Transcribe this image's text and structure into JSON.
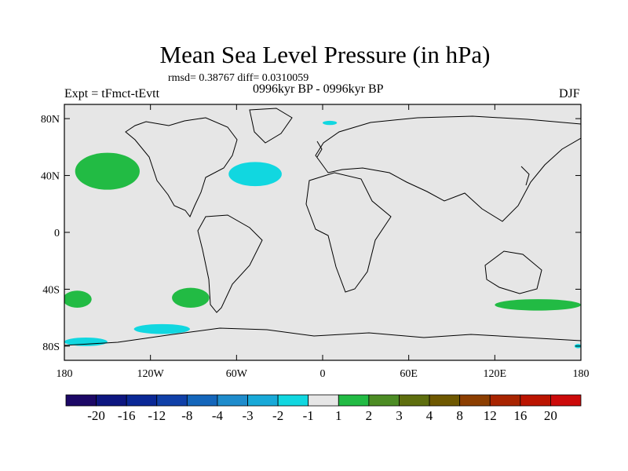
{
  "title": "Mean Sea Level Pressure (in hPa)",
  "stats": "rmsd= 0.38767 diff= 0.0310059",
  "experiment": "Expt = tFmct-tEvtt",
  "period": "0996kyr BP - 0996kyr BP",
  "season": "DJF",
  "map": {
    "background_color": "#e6e6e6",
    "lat_ticks": [
      {
        "value": 80,
        "label": "80N"
      },
      {
        "value": 40,
        "label": "40N"
      },
      {
        "value": 0,
        "label": "0"
      },
      {
        "value": -40,
        "label": "40S"
      },
      {
        "value": -80,
        "label": "80S"
      }
    ],
    "lon_ticks": [
      {
        "value": -180,
        "label": "180"
      },
      {
        "value": -120,
        "label": "120W"
      },
      {
        "value": -60,
        "label": "60W"
      },
      {
        "value": 0,
        "label": "0"
      },
      {
        "value": 60,
        "label": "60E"
      },
      {
        "value": 120,
        "label": "120E"
      },
      {
        "value": 180,
        "label": "180"
      }
    ],
    "anomaly_regions": [
      {
        "name": "north-pacific-positive",
        "level": "1 to 2",
        "color": "#22bb44",
        "center_lon": -150,
        "center_lat": 43,
        "span_lon": 45,
        "span_lat": 26
      },
      {
        "name": "north-atlantic-negative",
        "level": "-2 to -1",
        "color": "#11d7e0",
        "center_lon": -47,
        "center_lat": 41,
        "span_lon": 37,
        "span_lat": 17
      },
      {
        "name": "arctic-negative",
        "level": "-2 to -1",
        "color": "#11d7e0",
        "center_lon": 5,
        "center_lat": 77,
        "span_lon": 10,
        "span_lat": 3
      },
      {
        "name": "south-pacific-positive",
        "level": "1 to 2",
        "color": "#22bb44",
        "center_lon": -92,
        "center_lat": -46,
        "span_lon": 26,
        "span_lat": 14
      },
      {
        "name": "southeast-pacific-positive",
        "level": "1 to 2",
        "color": "#22bb44",
        "center_lon": -171,
        "center_lat": -47,
        "span_lon": 20,
        "span_lat": 12
      },
      {
        "name": "south-pacific-negative-1",
        "level": "-2 to -1",
        "color": "#11d7e0",
        "center_lon": -112,
        "center_lat": -68,
        "span_lon": 39,
        "span_lat": 7
      },
      {
        "name": "south-pacific-negative-2",
        "level": "-2 to -1",
        "color": "#11d7e0",
        "center_lon": -165,
        "center_lat": -77,
        "span_lon": 30,
        "span_lat": 6
      },
      {
        "name": "southern-ocean-positive",
        "level": "1 to 2",
        "color": "#22bb44",
        "center_lon": 150,
        "center_lat": -51,
        "span_lon": 60,
        "span_lat": 8
      },
      {
        "name": "antarctic-edge-negative",
        "level": "-2 to -1",
        "color": "#11d7e0",
        "center_lon": 178,
        "center_lat": -80,
        "span_lon": 5,
        "span_lat": 3
      }
    ]
  },
  "colorbar": {
    "labels": [
      "-20",
      "-16",
      "-12",
      "-8",
      "-4",
      "-3",
      "-2",
      "-1",
      "1",
      "2",
      "3",
      "4",
      "8",
      "12",
      "16",
      "20"
    ],
    "colors": [
      "#1c0866",
      "#0d1680",
      "#0a2896",
      "#1040a8",
      "#1466bb",
      "#1e8ccc",
      "#18a9d8",
      "#11d7e0",
      "#e6e6e6",
      "#22bb44",
      "#4c8c24",
      "#5e6e0e",
      "#6e5800",
      "#8c3e00",
      "#a82400",
      "#bb1400",
      "#cc0a0a"
    ]
  }
}
